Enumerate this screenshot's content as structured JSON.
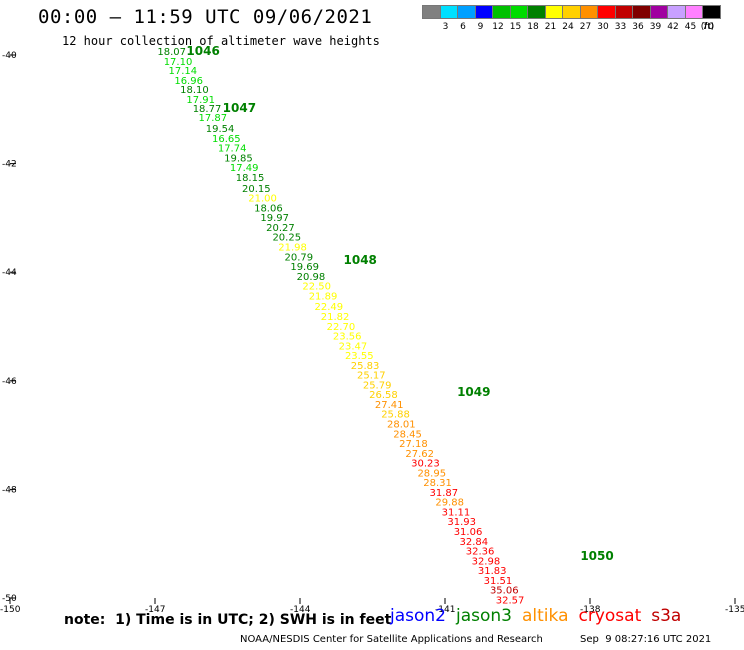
{
  "header": {
    "title": "00:00 – 11:59 UTC 09/06/2021",
    "subtitle": "12 hour collection of altimeter wave heights"
  },
  "color_scale": {
    "unit": "(ft)",
    "bins": [
      {
        "label": "3",
        "color": "#808080"
      },
      {
        "label": "6",
        "color": "#00e0ff"
      },
      {
        "label": "9",
        "color": "#00a0ff"
      },
      {
        "label": "12",
        "color": "#0000ff"
      },
      {
        "label": "15",
        "color": "#00c000"
      },
      {
        "label": "18",
        "color": "#00dd00"
      },
      {
        "label": "21",
        "color": "#008000"
      },
      {
        "label": "24",
        "color": "#ffff00"
      },
      {
        "label": "27",
        "color": "#ffd000"
      },
      {
        "label": "30",
        "color": "#ff9000"
      },
      {
        "label": "33",
        "color": "#ff0000"
      },
      {
        "label": "36",
        "color": "#c00000"
      },
      {
        "label": "39",
        "color": "#800000"
      },
      {
        "label": "42",
        "color": "#a000a0"
      },
      {
        "label": "45",
        "color": "#c8a0ff"
      },
      {
        "label": "70",
        "color": "#ff80ff"
      },
      {
        "label": "",
        "color": "#000000"
      }
    ]
  },
  "map": {
    "lat_ticks": [
      "-40",
      "-42",
      "-44",
      "-46",
      "-48",
      "-50"
    ],
    "lon_ticks": [
      "-150",
      "-147",
      "-144",
      "-141",
      "-138",
      "-135"
    ],
    "observations": [
      {
        "v": "18.07",
        "lon": -146.95,
        "lat": -40.0
      },
      {
        "v": "17.10",
        "lon": -146.82,
        "lat": -40.18
      },
      {
        "v": "17.14",
        "lon": -146.72,
        "lat": -40.35
      },
      {
        "v": "16.96",
        "lon": -146.6,
        "lat": -40.53
      },
      {
        "v": "18.10",
        "lon": -146.48,
        "lat": -40.7
      },
      {
        "v": "17.91",
        "lon": -146.35,
        "lat": -40.88
      },
      {
        "v": "18.77",
        "lon": -146.22,
        "lat": -41.05
      },
      {
        "v": "17.87",
        "lon": -146.1,
        "lat": -41.22
      },
      {
        "v": "19.54",
        "lon": -145.95,
        "lat": -41.42
      },
      {
        "v": "16.65",
        "lon": -145.82,
        "lat": -41.6
      },
      {
        "v": "17.74",
        "lon": -145.7,
        "lat": -41.78
      },
      {
        "v": "19.85",
        "lon": -145.57,
        "lat": -41.96
      },
      {
        "v": "17.49",
        "lon": -145.45,
        "lat": -42.14
      },
      {
        "v": "18.15",
        "lon": -145.33,
        "lat": -42.32
      },
      {
        "v": "20.15",
        "lon": -145.2,
        "lat": -42.52
      },
      {
        "v": "21.00",
        "lon": -145.07,
        "lat": -42.7
      },
      {
        "v": "18.06",
        "lon": -144.95,
        "lat": -42.88
      },
      {
        "v": "19.97",
        "lon": -144.82,
        "lat": -43.06
      },
      {
        "v": "20.27",
        "lon": -144.7,
        "lat": -43.24
      },
      {
        "v": "20.25",
        "lon": -144.57,
        "lat": -43.42
      },
      {
        "v": "21.98",
        "lon": -144.45,
        "lat": -43.6
      },
      {
        "v": "20.79",
        "lon": -144.32,
        "lat": -43.78
      },
      {
        "v": "19.69",
        "lon": -144.2,
        "lat": -43.96
      },
      {
        "v": "20.98",
        "lon": -144.07,
        "lat": -44.14
      },
      {
        "v": "22.50",
        "lon": -143.95,
        "lat": -44.32
      },
      {
        "v": "21.89",
        "lon": -143.82,
        "lat": -44.5
      },
      {
        "v": "22.49",
        "lon": -143.7,
        "lat": -44.7
      },
      {
        "v": "21.82",
        "lon": -143.57,
        "lat": -44.88
      },
      {
        "v": "22.70",
        "lon": -143.45,
        "lat": -45.06
      },
      {
        "v": "23.56",
        "lon": -143.32,
        "lat": -45.24
      },
      {
        "v": "23.47",
        "lon": -143.2,
        "lat": -45.42
      },
      {
        "v": "23.55",
        "lon": -143.07,
        "lat": -45.6
      },
      {
        "v": "25.83",
        "lon": -142.95,
        "lat": -45.78
      },
      {
        "v": "25.17",
        "lon": -142.82,
        "lat": -45.96
      },
      {
        "v": "25.79",
        "lon": -142.7,
        "lat": -46.14
      },
      {
        "v": "26.58",
        "lon": -142.57,
        "lat": -46.32
      },
      {
        "v": "27.41",
        "lon": -142.45,
        "lat": -46.5
      },
      {
        "v": "25.88",
        "lon": -142.32,
        "lat": -46.68
      },
      {
        "v": "28.01",
        "lon": -142.2,
        "lat": -46.86
      },
      {
        "v": "28.45",
        "lon": -142.07,
        "lat": -47.04
      },
      {
        "v": "27.18",
        "lon": -141.95,
        "lat": -47.22
      },
      {
        "v": "27.62",
        "lon": -141.82,
        "lat": -47.4
      },
      {
        "v": "30.23",
        "lon": -141.7,
        "lat": -47.58
      },
      {
        "v": "28.95",
        "lon": -141.57,
        "lat": -47.76
      },
      {
        "v": "28.31",
        "lon": -141.45,
        "lat": -47.94
      },
      {
        "v": "31.87",
        "lon": -141.32,
        "lat": -48.12
      },
      {
        "v": "29.88",
        "lon": -141.2,
        "lat": -48.3
      },
      {
        "v": "31.11",
        "lon": -141.07,
        "lat": -48.48
      },
      {
        "v": "31.93",
        "lon": -140.95,
        "lat": -48.66
      },
      {
        "v": "31.06",
        "lon": -140.82,
        "lat": -48.84
      },
      {
        "v": "32.84",
        "lon": -140.7,
        "lat": -49.02
      },
      {
        "v": "32.36",
        "lon": -140.57,
        "lat": -49.2
      },
      {
        "v": "32.98",
        "lon": -140.45,
        "lat": -49.38
      },
      {
        "v": "31.83",
        "lon": -140.32,
        "lat": -49.56
      },
      {
        "v": "31.51",
        "lon": -140.2,
        "lat": -49.74
      },
      {
        "v": "35.06",
        "lon": -140.07,
        "lat": -49.92
      },
      {
        "v": "32.57",
        "lon": -139.95,
        "lat": -50.1
      }
    ],
    "buoys": [
      {
        "id": "1046",
        "lon": -146.35,
        "lat": -40.0
      },
      {
        "id": "1047",
        "lon": -145.6,
        "lat": -41.05
      },
      {
        "id": "1048",
        "lon": -143.1,
        "lat": -43.85
      },
      {
        "id": "1049",
        "lon": -140.75,
        "lat": -46.28
      },
      {
        "id": "1050",
        "lon": -138.2,
        "lat": -49.3
      }
    ]
  },
  "note": "note:  1) Time is in UTC; 2) SWH is in feet",
  "satellites": [
    {
      "name": "jason2",
      "color": "#0000ff"
    },
    {
      "name": "jason3",
      "color": "#008000"
    },
    {
      "name": "altika",
      "color": "#ff9000"
    },
    {
      "name": "cryosat",
      "color": "#ff0000"
    },
    {
      "name": "s3a",
      "color": "#c00000"
    }
  ],
  "footer": {
    "credit": "NOAA/NESDIS Center for Satellite Applications and Research",
    "timestamp": "Sep  9 08:27:16 UTC 2021"
  }
}
